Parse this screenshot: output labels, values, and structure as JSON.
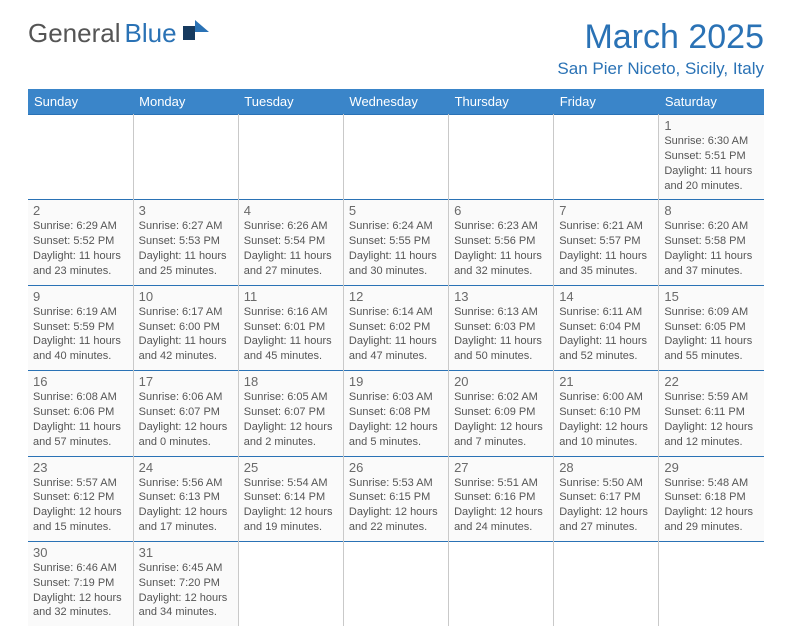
{
  "logo": {
    "text1": "General",
    "text2": "Blue"
  },
  "title": "March 2025",
  "location": "San Pier Niceto, Sicily, Italy",
  "colors": {
    "brand": "#2a72b5",
    "header_bg": "#3a85c9",
    "header_fg": "#ffffff",
    "cell_bg": "#fafafa",
    "text": "#555555"
  },
  "day_headers": [
    "Sunday",
    "Monday",
    "Tuesday",
    "Wednesday",
    "Thursday",
    "Friday",
    "Saturday"
  ],
  "weeks": [
    [
      null,
      null,
      null,
      null,
      null,
      null,
      {
        "n": "1",
        "sr": "6:30 AM",
        "ss": "5:51 PM",
        "dl": "11 hours and 20 minutes."
      }
    ],
    [
      {
        "n": "2",
        "sr": "6:29 AM",
        "ss": "5:52 PM",
        "dl": "11 hours and 23 minutes."
      },
      {
        "n": "3",
        "sr": "6:27 AM",
        "ss": "5:53 PM",
        "dl": "11 hours and 25 minutes."
      },
      {
        "n": "4",
        "sr": "6:26 AM",
        "ss": "5:54 PM",
        "dl": "11 hours and 27 minutes."
      },
      {
        "n": "5",
        "sr": "6:24 AM",
        "ss": "5:55 PM",
        "dl": "11 hours and 30 minutes."
      },
      {
        "n": "6",
        "sr": "6:23 AM",
        "ss": "5:56 PM",
        "dl": "11 hours and 32 minutes."
      },
      {
        "n": "7",
        "sr": "6:21 AM",
        "ss": "5:57 PM",
        "dl": "11 hours and 35 minutes."
      },
      {
        "n": "8",
        "sr": "6:20 AM",
        "ss": "5:58 PM",
        "dl": "11 hours and 37 minutes."
      }
    ],
    [
      {
        "n": "9",
        "sr": "6:19 AM",
        "ss": "5:59 PM",
        "dl": "11 hours and 40 minutes."
      },
      {
        "n": "10",
        "sr": "6:17 AM",
        "ss": "6:00 PM",
        "dl": "11 hours and 42 minutes."
      },
      {
        "n": "11",
        "sr": "6:16 AM",
        "ss": "6:01 PM",
        "dl": "11 hours and 45 minutes."
      },
      {
        "n": "12",
        "sr": "6:14 AM",
        "ss": "6:02 PM",
        "dl": "11 hours and 47 minutes."
      },
      {
        "n": "13",
        "sr": "6:13 AM",
        "ss": "6:03 PM",
        "dl": "11 hours and 50 minutes."
      },
      {
        "n": "14",
        "sr": "6:11 AM",
        "ss": "6:04 PM",
        "dl": "11 hours and 52 minutes."
      },
      {
        "n": "15",
        "sr": "6:09 AM",
        "ss": "6:05 PM",
        "dl": "11 hours and 55 minutes."
      }
    ],
    [
      {
        "n": "16",
        "sr": "6:08 AM",
        "ss": "6:06 PM",
        "dl": "11 hours and 57 minutes."
      },
      {
        "n": "17",
        "sr": "6:06 AM",
        "ss": "6:07 PM",
        "dl": "12 hours and 0 minutes."
      },
      {
        "n": "18",
        "sr": "6:05 AM",
        "ss": "6:07 PM",
        "dl": "12 hours and 2 minutes."
      },
      {
        "n": "19",
        "sr": "6:03 AM",
        "ss": "6:08 PM",
        "dl": "12 hours and 5 minutes."
      },
      {
        "n": "20",
        "sr": "6:02 AM",
        "ss": "6:09 PM",
        "dl": "12 hours and 7 minutes."
      },
      {
        "n": "21",
        "sr": "6:00 AM",
        "ss": "6:10 PM",
        "dl": "12 hours and 10 minutes."
      },
      {
        "n": "22",
        "sr": "5:59 AM",
        "ss": "6:11 PM",
        "dl": "12 hours and 12 minutes."
      }
    ],
    [
      {
        "n": "23",
        "sr": "5:57 AM",
        "ss": "6:12 PM",
        "dl": "12 hours and 15 minutes."
      },
      {
        "n": "24",
        "sr": "5:56 AM",
        "ss": "6:13 PM",
        "dl": "12 hours and 17 minutes."
      },
      {
        "n": "25",
        "sr": "5:54 AM",
        "ss": "6:14 PM",
        "dl": "12 hours and 19 minutes."
      },
      {
        "n": "26",
        "sr": "5:53 AM",
        "ss": "6:15 PM",
        "dl": "12 hours and 22 minutes."
      },
      {
        "n": "27",
        "sr": "5:51 AM",
        "ss": "6:16 PM",
        "dl": "12 hours and 24 minutes."
      },
      {
        "n": "28",
        "sr": "5:50 AM",
        "ss": "6:17 PM",
        "dl": "12 hours and 27 minutes."
      },
      {
        "n": "29",
        "sr": "5:48 AM",
        "ss": "6:18 PM",
        "dl": "12 hours and 29 minutes."
      }
    ],
    [
      {
        "n": "30",
        "sr": "6:46 AM",
        "ss": "7:19 PM",
        "dl": "12 hours and 32 minutes."
      },
      {
        "n": "31",
        "sr": "6:45 AM",
        "ss": "7:20 PM",
        "dl": "12 hours and 34 minutes."
      },
      null,
      null,
      null,
      null,
      null
    ]
  ],
  "labels": {
    "sunrise": "Sunrise: ",
    "sunset": "Sunset: ",
    "daylight": "Daylight: "
  }
}
